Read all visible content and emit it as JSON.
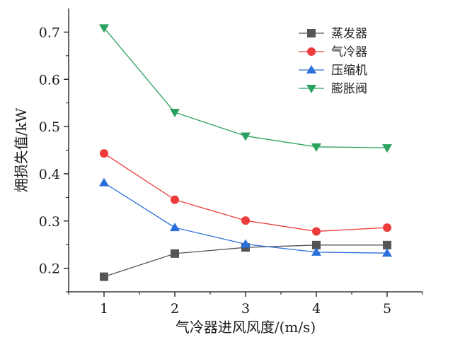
{
  "chart_data": {
    "type": "line",
    "title": "",
    "xlabel": "气冷器进风风度/(m/s)",
    "ylabel": "㶲损失值/kW",
    "x": [
      1,
      2,
      3,
      4,
      5
    ],
    "xlim": [
      0.5,
      5.5
    ],
    "ylim": [
      0.15,
      0.75
    ],
    "xticks": [
      1,
      2,
      3,
      4,
      5
    ],
    "yticks": [
      0.2,
      0.3,
      0.4,
      0.5,
      0.6,
      0.7
    ],
    "grid": false,
    "legend_position": "top-right",
    "series": [
      {
        "name": "蒸发器",
        "marker": "square",
        "color": "#555555",
        "values": [
          0.182,
          0.231,
          0.244,
          0.249,
          0.249
        ]
      },
      {
        "name": "气冷器",
        "marker": "circle",
        "color": "#ee3b3b",
        "values": [
          0.443,
          0.345,
          0.301,
          0.278,
          0.286
        ]
      },
      {
        "name": "压缩机",
        "marker": "triangle-up",
        "color": "#2a6fdb",
        "values": [
          0.381,
          0.286,
          0.251,
          0.234,
          0.232
        ]
      },
      {
        "name": "膨胀阀",
        "marker": "triangle-down",
        "color": "#2ca25f",
        "values": [
          0.709,
          0.53,
          0.48,
          0.457,
          0.455
        ]
      }
    ]
  }
}
